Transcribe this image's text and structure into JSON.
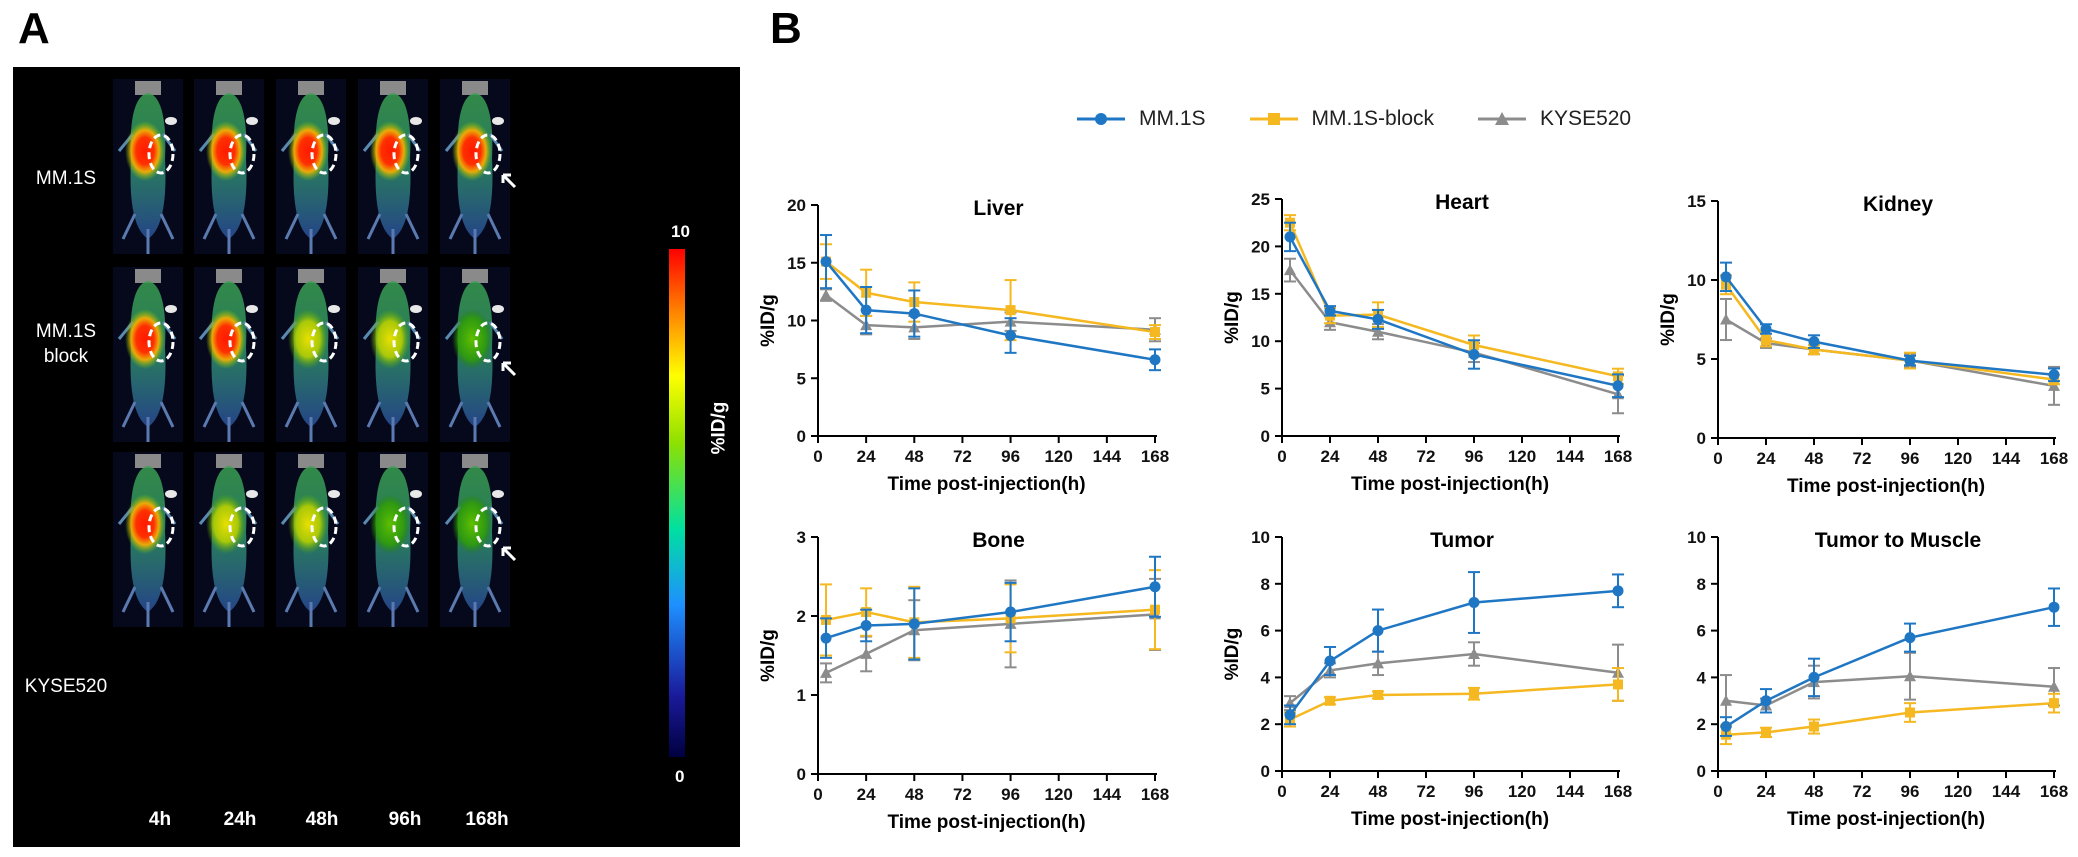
{
  "panel_labels": {
    "a": "A",
    "b": "B"
  },
  "imaging": {
    "rows": [
      {
        "label_line1": "MM.1S",
        "label_line2": ""
      },
      {
        "label_line1": "MM.1S",
        "label_line2": "block"
      },
      {
        "label_line1": "KYSE520",
        "label_line2": ""
      }
    ],
    "timepoints": [
      "4h",
      "24h",
      "48h",
      "96h",
      "168h"
    ],
    "colorbar": {
      "max": "10",
      "min": "0",
      "label": "%ID/g"
    }
  },
  "legend": [
    {
      "name": "MM.1S",
      "color": "#1f77c4",
      "marker": "circle"
    },
    {
      "name": "MM.1S-block",
      "color": "#f5b820",
      "marker": "square"
    },
    {
      "name": "KYSE520",
      "color": "#8c8c8c",
      "marker": "triangle"
    }
  ],
  "chart_data": [
    {
      "type": "line",
      "title": "Liver",
      "xlabel": "Time post-injection(h)",
      "ylabel": "%ID/g",
      "xlim": [
        0,
        168
      ],
      "ylim": [
        0,
        20
      ],
      "xticks": [
        0,
        24,
        48,
        72,
        96,
        120,
        144,
        168
      ],
      "yticks": [
        0,
        5,
        10,
        15,
        20
      ],
      "x": [
        4,
        24,
        48,
        96,
        168
      ],
      "series": [
        {
          "name": "MM.1S",
          "values": [
            15.1,
            10.9,
            10.6,
            8.7,
            6.6
          ],
          "errors": [
            2.3,
            2.0,
            2.0,
            1.5,
            0.9
          ]
        },
        {
          "name": "MM.1S-block",
          "values": [
            15.1,
            12.4,
            11.6,
            10.9,
            9.0
          ],
          "errors": [
            1.5,
            2.0,
            1.7,
            2.6,
            0.6
          ]
        },
        {
          "name": "KYSE520",
          "values": [
            12.2,
            9.6,
            9.4,
            9.9,
            9.2
          ],
          "errors": [
            0.5,
            0.8,
            1.0,
            0.8,
            1.0
          ]
        }
      ]
    },
    {
      "type": "line",
      "title": "Heart",
      "xlabel": "Time post-injection(h)",
      "ylabel": "%ID/g",
      "xlim": [
        0,
        168
      ],
      "ylim": [
        0,
        25
      ],
      "xticks": [
        0,
        24,
        48,
        72,
        96,
        120,
        144,
        168
      ],
      "yticks": [
        0,
        5,
        10,
        15,
        20,
        25
      ],
      "x": [
        4,
        24,
        48,
        96,
        168
      ],
      "series": [
        {
          "name": "MM.1S",
          "values": [
            21.0,
            13.2,
            12.3,
            8.6,
            5.3
          ],
          "errors": [
            1.5,
            0.5,
            1.0,
            1.5,
            1.2
          ]
        },
        {
          "name": "MM.1S-block",
          "values": [
            22.5,
            12.7,
            12.8,
            9.6,
            6.3
          ],
          "errors": [
            0.8,
            0.8,
            1.3,
            1.0,
            0.8
          ]
        },
        {
          "name": "KYSE520",
          "values": [
            17.5,
            12.0,
            11.0,
            8.8,
            4.4
          ],
          "errors": [
            1.2,
            0.8,
            0.8,
            1.0,
            2.0
          ]
        }
      ]
    },
    {
      "type": "line",
      "title": "Kidney",
      "xlabel": "Time post-injection(h)",
      "ylabel": "%ID/g",
      "xlim": [
        0,
        168
      ],
      "ylim": [
        0,
        15
      ],
      "xticks": [
        0,
        24,
        48,
        72,
        96,
        120,
        144,
        168
      ],
      "yticks": [
        0,
        5,
        10,
        15
      ],
      "x": [
        4,
        24,
        48,
        96,
        168
      ],
      "series": [
        {
          "name": "MM.1S",
          "values": [
            10.2,
            6.9,
            6.1,
            4.9,
            4.0
          ],
          "errors": [
            0.9,
            0.3,
            0.4,
            0.3,
            0.4
          ]
        },
        {
          "name": "MM.1S-block",
          "values": [
            9.7,
            6.2,
            5.6,
            4.9,
            3.7
          ],
          "errors": [
            0.6,
            0.4,
            0.3,
            0.5,
            0.3
          ]
        },
        {
          "name": "KYSE520",
          "values": [
            7.5,
            6.0,
            5.6,
            4.9,
            3.3
          ],
          "errors": [
            1.3,
            0.3,
            0.3,
            0.4,
            1.2
          ]
        }
      ]
    },
    {
      "type": "line",
      "title": "Bone",
      "xlabel": "Time post-injection(h)",
      "ylabel": "%ID/g",
      "xlim": [
        0,
        168
      ],
      "ylim": [
        0,
        3
      ],
      "xticks": [
        0,
        24,
        48,
        72,
        96,
        120,
        144,
        168
      ],
      "yticks": [
        0,
        1,
        2,
        3
      ],
      "x": [
        4,
        24,
        48,
        96,
        168
      ],
      "series": [
        {
          "name": "MM.1S",
          "values": [
            1.72,
            1.88,
            1.9,
            2.05,
            2.37
          ],
          "errors": [
            0.25,
            0.2,
            0.45,
            0.37,
            0.38
          ]
        },
        {
          "name": "MM.1S-block",
          "values": [
            1.95,
            2.05,
            1.92,
            1.97,
            2.08
          ],
          "errors": [
            0.45,
            0.3,
            0.45,
            0.43,
            0.5
          ]
        },
        {
          "name": "KYSE520",
          "values": [
            1.28,
            1.52,
            1.82,
            1.9,
            2.02
          ],
          "errors": [
            0.12,
            0.22,
            0.38,
            0.55,
            0.45
          ]
        }
      ]
    },
    {
      "type": "line",
      "title": "Tumor",
      "xlabel": "Time post-injection(h)",
      "ylabel": "%ID/g",
      "xlim": [
        0,
        168
      ],
      "ylim": [
        0,
        10
      ],
      "xticks": [
        0,
        24,
        48,
        72,
        96,
        120,
        144,
        168
      ],
      "yticks": [
        0,
        2,
        4,
        6,
        8,
        10
      ],
      "x": [
        4,
        24,
        48,
        96,
        168
      ],
      "series": [
        {
          "name": "MM.1S",
          "values": [
            2.4,
            4.7,
            6.0,
            7.2,
            7.7
          ],
          "errors": [
            0.4,
            0.6,
            0.9,
            1.3,
            0.7
          ]
        },
        {
          "name": "MM.1S-block",
          "values": [
            2.2,
            3.0,
            3.25,
            3.3,
            3.7
          ],
          "errors": [
            0.3,
            0.15,
            0.15,
            0.25,
            0.7
          ]
        },
        {
          "name": "KYSE520",
          "values": [
            2.9,
            4.3,
            4.6,
            5.0,
            4.2
          ],
          "errors": [
            0.3,
            0.3,
            0.5,
            0.5,
            1.2
          ]
        }
      ]
    },
    {
      "type": "line",
      "title": "Tumor to Muscle",
      "xlabel": "Time post-injection(h)",
      "ylabel": "",
      "xlim": [
        0,
        168
      ],
      "ylim": [
        0,
        10
      ],
      "xticks": [
        0,
        24,
        48,
        72,
        96,
        120,
        144,
        168
      ],
      "yticks": [
        0,
        2,
        4,
        6,
        8,
        10
      ],
      "x": [
        4,
        24,
        48,
        96,
        168
      ],
      "series": [
        {
          "name": "MM.1S",
          "values": [
            1.9,
            3.0,
            4.0,
            5.7,
            7.0
          ],
          "errors": [
            0.4,
            0.5,
            0.8,
            0.6,
            0.8
          ]
        },
        {
          "name": "MM.1S-block",
          "values": [
            1.55,
            1.65,
            1.9,
            2.5,
            2.9
          ],
          "errors": [
            0.4,
            0.2,
            0.3,
            0.4,
            0.4
          ]
        },
        {
          "name": "KYSE520",
          "values": [
            3.0,
            2.8,
            3.8,
            4.05,
            3.6
          ],
          "errors": [
            1.1,
            0.3,
            0.7,
            1.0,
            0.8
          ]
        }
      ]
    }
  ]
}
